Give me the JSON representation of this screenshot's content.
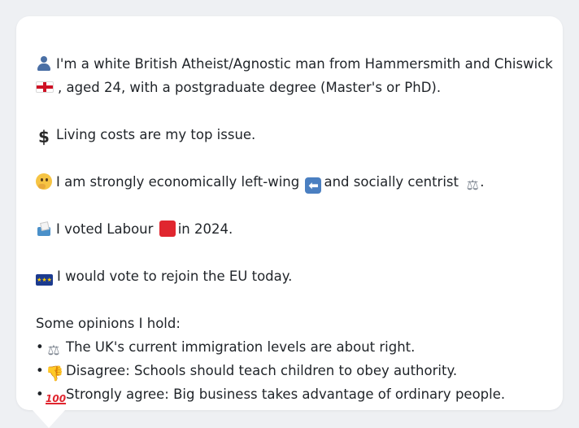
{
  "profile": {
    "identity_line1": "I'm a white British Atheist/Agnostic man from Hammersmith and Chiswick",
    "identity_line2": ", aged 24, with a postgraduate degree (Master's or PhD).",
    "top_issue": "Living costs are my top issue.",
    "political_part1": "I am strongly economically left-wing",
    "political_part2": "and socially centrist",
    "political_part3": ".",
    "vote_part1": "I voted Labour",
    "vote_part2": "in 2024.",
    "eu_stance": "I would vote to rejoin the EU today.",
    "opinions_heading": "Some opinions I hold:",
    "opinions": [
      {
        "bullet": "•",
        "icon": "scales-icon",
        "text": "The UK's current immigration levels are about right."
      },
      {
        "bullet": "•",
        "icon": "thumbs-down-icon",
        "text": "Disagree: Schools should teach children to obey authority."
      },
      {
        "bullet": "•",
        "icon": "hundred-points-icon",
        "text": "Strongly agree: Big business takes advantage of ordinary people."
      }
    ]
  },
  "colors": {
    "background": "#eef0f3",
    "bubble": "#ffffff",
    "text": "#1f2328"
  }
}
